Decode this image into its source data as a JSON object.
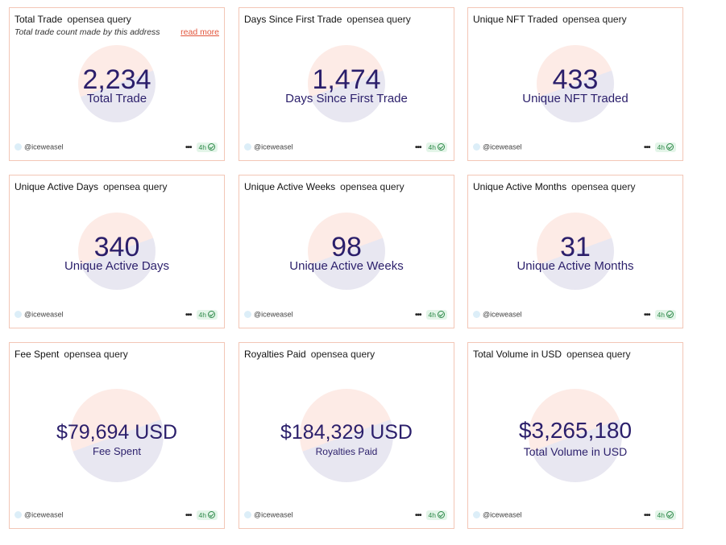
{
  "cards": [
    {
      "title": "Total Trade",
      "query": "opensea query",
      "description": "Total trade count made by this address",
      "read_more": "read more",
      "value": "2,234",
      "label": "Total Trade",
      "user": "@iceweasel",
      "age": "4h"
    },
    {
      "title": "Days Since First Trade",
      "query": "opensea query",
      "value": "1,474",
      "label": "Days Since First Trade",
      "user": "@iceweasel",
      "age": "4h"
    },
    {
      "title": "Unique NFT Traded",
      "query": "opensea query",
      "value": "433",
      "label": "Unique NFT Traded",
      "user": "@iceweasel",
      "age": "4h"
    },
    {
      "title": "Unique Active Days",
      "query": "opensea query",
      "value": "340",
      "label": "Unique Active Days",
      "user": "@iceweasel",
      "age": "4h"
    },
    {
      "title": "Unique Active Weeks",
      "query": "opensea query",
      "value": "98",
      "label": "Unique Active Weeks",
      "user": "@iceweasel",
      "age": "4h"
    },
    {
      "title": "Unique Active Months",
      "query": "opensea query",
      "value": "31",
      "label": "Unique Active Months",
      "user": "@iceweasel",
      "age": "4h"
    },
    {
      "title": "Fee Spent",
      "query": "opensea query",
      "value": "$79,694 USD",
      "label": "Fee Spent",
      "user": "@iceweasel",
      "age": "4h"
    },
    {
      "title": "Royalties Paid",
      "query": "opensea query",
      "value": "$184,329 USD",
      "label": "Royalties Paid",
      "user": "@iceweasel",
      "age": "4h"
    },
    {
      "title": "Total Volume in USD",
      "query": "opensea query",
      "value": "$3,265,180",
      "label": "Total Volume in USD",
      "user": "@iceweasel",
      "age": "4h"
    }
  ],
  "colors": {
    "border": "#f3c6b6",
    "value": "#2b1f6b",
    "read_more": "#e2553b",
    "badge_bg": "#e4f5e9",
    "badge_text": "#2f8a4a"
  }
}
